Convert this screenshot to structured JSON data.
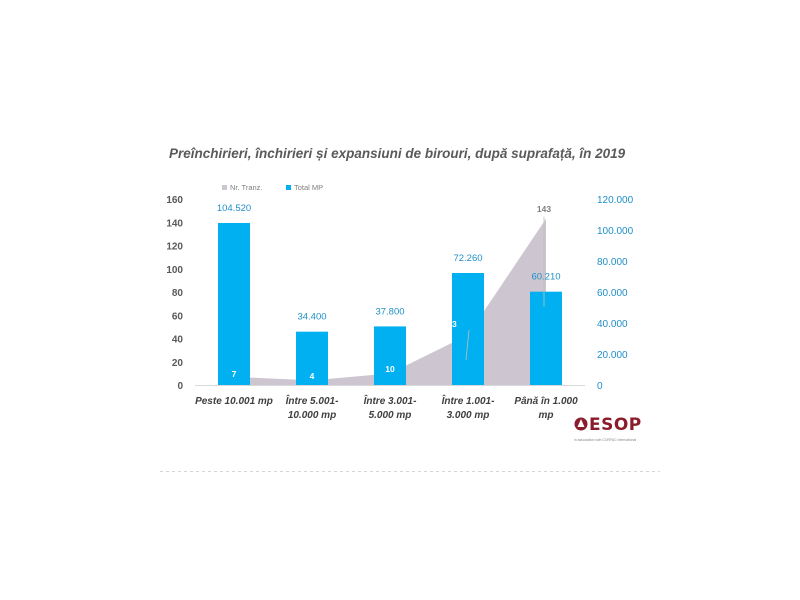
{
  "page": {
    "title": "Preînchirieri, închirieri și expansiuni de birouri, după suprafață, în 2019"
  },
  "chart_data": {
    "type": "bar",
    "title": "Preînchirieri, închirieri și expansiuni de birouri, după suprafață, în 2019",
    "categories": [
      [
        "Peste 10.001 mp"
      ],
      [
        "Între 5.001-",
        "10.000 mp"
      ],
      [
        "Între 3.001-",
        "5.000 mp"
      ],
      [
        "Între 1.001-",
        "3.000 mp"
      ],
      [
        "Până în 1.000",
        "mp"
      ]
    ],
    "series": [
      {
        "name": "Nr. Tranz.",
        "kind": "area",
        "axis": "left",
        "color": "#cdc5cf",
        "values": [
          7,
          4,
          10,
          43,
          143
        ],
        "labels": [
          "7",
          "4",
          "10",
          "43",
          "143"
        ]
      },
      {
        "name": "Total MP",
        "kind": "bar",
        "axis": "right",
        "color": "#00b0f0",
        "values": [
          104520,
          34400,
          37800,
          72260,
          60210
        ],
        "labels": [
          "104.520",
          "34.400",
          "37.800",
          "72.260",
          "60.210"
        ]
      }
    ],
    "y_left": {
      "min": 0,
      "max": 160,
      "ticks": [
        "0",
        "20",
        "40",
        "60",
        "80",
        "100",
        "120",
        "140",
        "160"
      ]
    },
    "y_right": {
      "min": 0,
      "max": 120000,
      "ticks": [
        "0",
        "20.000",
        "40.000",
        "60.000",
        "80.000",
        "100.000",
        "120.000"
      ]
    },
    "legend": {
      "position": "top-left"
    },
    "grid": false
  },
  "logo": {
    "name": "ESOP",
    "tagline": "in association with CORFAC International"
  }
}
